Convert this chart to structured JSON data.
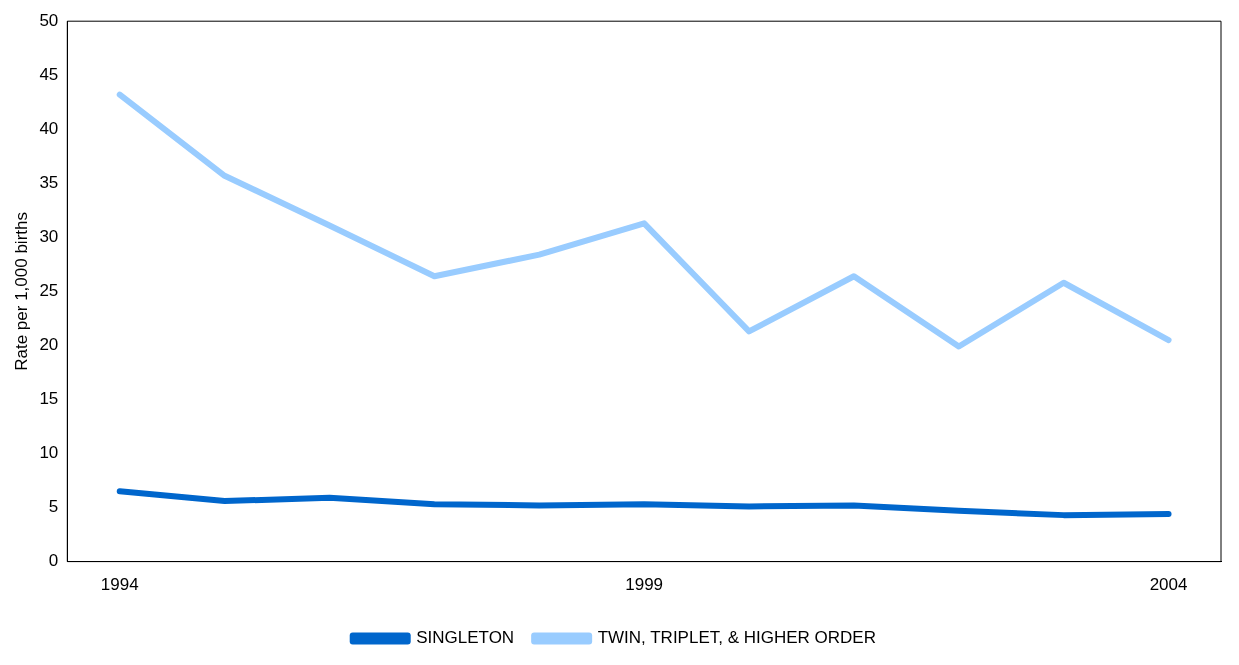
{
  "chart_data": {
    "type": "line",
    "ylabel": "Rate per 1,000 births",
    "categories": [
      "1994",
      null,
      null,
      null,
      null,
      "1999",
      null,
      null,
      null,
      null,
      "2004"
    ],
    "series": [
      {
        "name": "SINGLETON",
        "color": "#0066cc",
        "values": [
          6.5,
          5.6,
          5.9,
          5.3,
          5.2,
          5.3,
          5.1,
          5.2,
          4.7,
          4.3,
          4.4
        ]
      },
      {
        "name": "TWIN, TRIPLET, & HIGHER ORDER",
        "color": "#99ccff",
        "values": [
          43.2,
          35.7,
          31.1,
          26.4,
          28.4,
          31.3,
          21.3,
          26.4,
          19.9,
          25.8,
          20.5
        ]
      }
    ],
    "ylim": [
      0,
      50
    ],
    "yticks": [
      0,
      5,
      10,
      15,
      20,
      25,
      30,
      35,
      40,
      45,
      50
    ],
    "grid": false,
    "legend": "bottom",
    "marker": "none",
    "line_style": "solid"
  }
}
